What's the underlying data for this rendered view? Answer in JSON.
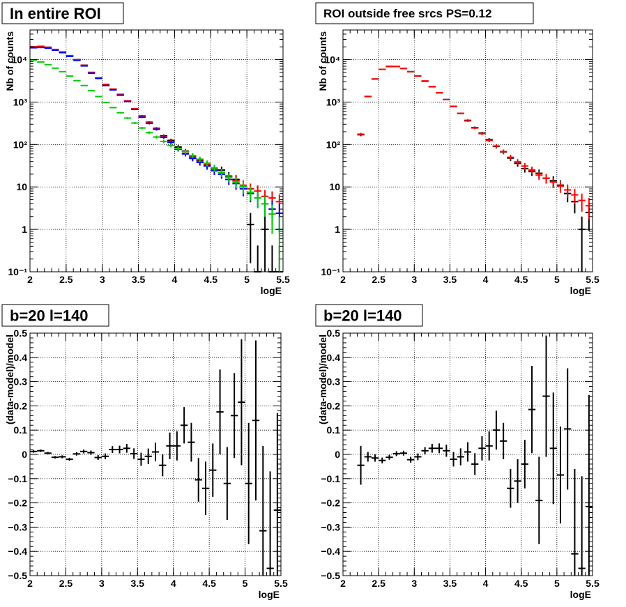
{
  "chart_data": [
    {
      "type": "scatter",
      "title": "In entire ROI",
      "xlabel": "logE",
      "ylabel": "Nb of counts",
      "xlim": [
        2,
        5.5
      ],
      "ylim": [
        0.1,
        50000
      ],
      "log_y": true,
      "grid": true,
      "x_ticks": [
        "2",
        "2.5",
        "3",
        "3.5",
        "4",
        "4.5",
        "5",
        "5.5"
      ],
      "y_ticks": [
        "10⁻¹",
        "1",
        "10",
        "10²",
        "10³",
        "10⁴"
      ],
      "bin_width": 0.1,
      "series": [
        {
          "color": "#000000",
          "x": [
            2.05,
            2.15,
            2.25,
            2.35,
            2.45,
            2.55,
            2.65,
            2.75,
            2.85,
            2.95,
            3.05,
            3.15,
            3.25,
            3.35,
            3.45,
            3.55,
            3.65,
            3.75,
            3.85,
            3.95,
            4.05,
            4.15,
            4.25,
            4.35,
            4.45,
            4.55,
            4.65,
            4.75,
            4.85,
            4.95,
            5.05,
            5.15,
            5.25,
            5.35,
            5.45
          ],
          "y": [
            20000,
            20500,
            19600,
            17300,
            15000,
            12400,
            10000,
            7400,
            5000,
            3700,
            2600,
            2020,
            1520,
            1050,
            690,
            470,
            335,
            242,
            160,
            125,
            87,
            70,
            54,
            43,
            34,
            27,
            25,
            18,
            15,
            10,
            1.3,
            0.1,
            1.0,
            0.1,
            0.1
          ],
          "y_override": [
            20000,
            20500,
            19600,
            17300,
            15000,
            12400,
            10000,
            7400,
            5000,
            3700,
            2600,
            2020,
            1520,
            1050,
            690,
            470,
            335,
            242,
            160,
            125,
            87,
            70,
            54,
            43,
            34,
            27,
            25,
            18,
            15,
            10,
            1.3,
            0.1,
            1.0,
            0.1,
            0.1
          ]
        },
        {
          "color": "#ff0000",
          "x": [
            2.05,
            2.15,
            2.25,
            2.35,
            2.45,
            2.55,
            2.65,
            2.75,
            2.85,
            2.95,
            3.05,
            3.15,
            3.25,
            3.35,
            3.45,
            3.55,
            3.65,
            3.75,
            3.85,
            3.95,
            4.05,
            4.15,
            4.25,
            4.35,
            4.45,
            4.55,
            4.65,
            4.75,
            4.85,
            4.95,
            5.05,
            5.15,
            5.25,
            5.35,
            5.45
          ],
          "y": [
            20000,
            20200,
            19400,
            17400,
            15200,
            12300,
            9950,
            7350,
            5000,
            3720,
            2560,
            2000,
            1510,
            1070,
            700,
            460,
            330,
            240,
            155,
            117,
            80,
            62,
            50,
            40,
            33,
            26,
            22,
            17,
            14,
            11,
            9,
            8,
            6,
            5.5,
            4.5
          ]
        },
        {
          "color": "#0000ff",
          "x": [
            2.05,
            2.15,
            2.25,
            2.35,
            2.45,
            2.55,
            2.65,
            2.75,
            2.85,
            2.95,
            3.05,
            3.15,
            3.25,
            3.35,
            3.45,
            3.55,
            3.65,
            3.75,
            3.85,
            3.95,
            4.05,
            4.15,
            4.25,
            4.35,
            4.45,
            4.55,
            4.65,
            4.75,
            4.85,
            4.95,
            5.05,
            5.15,
            5.25,
            5.35,
            5.45
          ],
          "y": [
            19000,
            19300,
            18600,
            16700,
            14600,
            11900,
            9600,
            7100,
            4800,
            3600,
            2450,
            1930,
            1450,
            1030,
            670,
            440,
            315,
            228,
            148,
            112,
            77,
            60,
            47,
            38,
            31,
            24,
            20,
            15,
            12,
            9,
            7,
            5.5,
            4,
            3,
            2.4
          ]
        },
        {
          "color": "#00cc00",
          "x": [
            2.05,
            2.15,
            2.25,
            2.35,
            2.45,
            2.55,
            2.65,
            2.75,
            2.85,
            2.95,
            3.05,
            3.15,
            3.25,
            3.35,
            3.45,
            3.55,
            3.65,
            3.75,
            3.85,
            3.95,
            4.05,
            4.15,
            4.25,
            4.35,
            4.45,
            4.55,
            4.65,
            4.75,
            4.85,
            4.95,
            5.05,
            5.15,
            5.25,
            5.35,
            5.45
          ],
          "y": [
            9800,
            8800,
            7600,
            6300,
            5200,
            4100,
            3200,
            2450,
            1850,
            1350,
            980,
            740,
            560,
            420,
            320,
            245,
            190,
            150,
            118,
            95,
            80,
            68,
            55,
            45,
            36,
            28,
            22,
            17,
            13,
            10,
            7.5,
            5.5,
            4,
            2.3,
            1
          ]
        }
      ]
    },
    {
      "type": "scatter",
      "title": "ROI outside free srcs PS=0.12",
      "xlabel": "logE",
      "ylabel": "Nb of counts",
      "xlim": [
        2,
        5.5
      ],
      "ylim": [
        0.1,
        50000
      ],
      "log_y": true,
      "grid": true,
      "x_ticks": [
        "2",
        "2.5",
        "3",
        "3.5",
        "4",
        "4.5",
        "5",
        "5.5"
      ],
      "y_ticks": [
        "10⁻¹",
        "1",
        "10",
        "10²",
        "10³",
        "10⁴"
      ],
      "bin_width": 0.1,
      "series": [
        {
          "color": "#000000",
          "x": [
            2.25,
            2.35,
            2.45,
            2.55,
            2.65,
            2.75,
            2.85,
            2.95,
            3.05,
            3.15,
            3.25,
            3.35,
            3.45,
            3.55,
            3.65,
            3.75,
            3.85,
            3.95,
            4.05,
            4.15,
            4.25,
            4.35,
            4.45,
            4.55,
            4.65,
            4.75,
            4.85,
            4.95,
            5.05,
            5.15,
            5.25,
            5.35,
            5.45
          ],
          "y": [
            170,
            1350,
            3500,
            5900,
            6900,
            6900,
            6200,
            5200,
            4100,
            3100,
            2300,
            1650,
            1150,
            790,
            540,
            370,
            250,
            185,
            130,
            90,
            67,
            48,
            36,
            27,
            23,
            21,
            16,
            14,
            11,
            7,
            4.5,
            1.0,
            2.5
          ]
        },
        {
          "color": "#ff0000",
          "x": [
            2.25,
            2.35,
            2.45,
            2.55,
            2.65,
            2.75,
            2.85,
            2.95,
            3.05,
            3.15,
            3.25,
            3.35,
            3.45,
            3.55,
            3.65,
            3.75,
            3.85,
            3.95,
            4.05,
            4.15,
            4.25,
            4.35,
            4.45,
            4.55,
            4.65,
            4.75,
            4.85,
            4.95,
            5.05,
            5.15,
            5.25,
            5.35,
            5.45
          ],
          "y": [
            175,
            1360,
            3500,
            5900,
            6950,
            6900,
            6200,
            5200,
            4100,
            3150,
            2320,
            1660,
            1140,
            790,
            540,
            360,
            245,
            180,
            125,
            92,
            68,
            50,
            39,
            31,
            25,
            19,
            16,
            13,
            10.5,
            8.5,
            6.5,
            4.8,
            3.6
          ]
        }
      ]
    },
    {
      "type": "scatter",
      "title": "b=20 l=140",
      "xlabel": "logE",
      "ylabel": "(data-model)/model",
      "xlim": [
        2,
        5.5
      ],
      "ylim": [
        -0.5,
        0.5
      ],
      "grid": true,
      "x_ticks": [
        "2",
        "2.5",
        "3",
        "3.5",
        "4",
        "4.5",
        "5",
        "5.5"
      ],
      "y_ticks": [
        "−0.5",
        "−0.4",
        "−0.3",
        "−0.2",
        "−0.1",
        "0",
        "0.1",
        "0.2",
        "0.3",
        "0.4",
        "0.5"
      ],
      "bin_width": 0.1,
      "series": [
        {
          "color": "#000000",
          "x": [
            2.05,
            2.15,
            2.25,
            2.35,
            2.45,
            2.55,
            2.65,
            2.75,
            2.85,
            2.95,
            3.05,
            3.15,
            3.25,
            3.35,
            3.45,
            3.55,
            3.65,
            3.75,
            3.85,
            3.95,
            4.05,
            4.15,
            4.25,
            4.35,
            4.45,
            4.55,
            4.65,
            4.75,
            4.85,
            4.95,
            5.05,
            5.15,
            5.25,
            5.35,
            5.45
          ],
          "y": [
            0.012,
            0.015,
            0.005,
            -0.012,
            -0.01,
            -0.02,
            0.002,
            0.012,
            0.007,
            -0.013,
            -0.008,
            0.02,
            0.02,
            0.025,
            0.003,
            -0.02,
            -0.008,
            0.01,
            -0.045,
            0.035,
            0.035,
            0.12,
            0.05,
            -0.105,
            -0.14,
            -0.065,
            0.175,
            -0.12,
            0.16,
            0.215,
            -0.12,
            0.14,
            -0.315,
            -0.47,
            -0.23
          ],
          "err": [
            0.005,
            0.005,
            0.005,
            0.005,
            0.006,
            0.006,
            0.007,
            0.008,
            0.009,
            0.01,
            0.012,
            0.014,
            0.016,
            0.018,
            0.022,
            0.027,
            0.032,
            0.038,
            0.045,
            0.055,
            0.06,
            0.075,
            0.08,
            0.09,
            0.11,
            0.11,
            0.175,
            0.15,
            0.175,
            0.26,
            0.25,
            0.33,
            0.35,
            0.4,
            0.4
          ]
        }
      ]
    },
    {
      "type": "scatter",
      "title": "b=20 l=140",
      "xlabel": "logE",
      "ylabel": "(data-model)/model",
      "xlim": [
        2,
        5.5
      ],
      "ylim": [
        -0.5,
        0.5
      ],
      "grid": true,
      "x_ticks": [
        "2",
        "2.5",
        "3",
        "3.5",
        "4",
        "4.5",
        "5",
        "5.5"
      ],
      "y_ticks": [
        "−0.5",
        "−0.4",
        "−0.3",
        "−0.2",
        "−0.1",
        "0",
        "0.1",
        "0.2",
        "0.3",
        "0.4",
        "0.5"
      ],
      "bin_width": 0.1,
      "series": [
        {
          "color": "#000000",
          "x": [
            2.25,
            2.35,
            2.45,
            2.55,
            2.65,
            2.75,
            2.85,
            2.95,
            3.05,
            3.15,
            3.25,
            3.35,
            3.45,
            3.55,
            3.65,
            3.75,
            3.85,
            3.95,
            4.05,
            4.15,
            4.25,
            4.35,
            4.45,
            4.55,
            4.65,
            4.75,
            4.85,
            4.95,
            5.05,
            5.15,
            5.25,
            5.35,
            5.45
          ],
          "y": [
            -0.045,
            -0.01,
            -0.015,
            -0.025,
            -0.012,
            0.003,
            0.005,
            -0.022,
            -0.01,
            0.015,
            0.025,
            0.025,
            0.015,
            -0.02,
            -0.01,
            0.01,
            -0.04,
            0.025,
            0.035,
            0.1,
            0.055,
            -0.14,
            -0.11,
            -0.04,
            0.185,
            -0.19,
            0.24,
            0.025,
            -0.085,
            0.105,
            -0.41,
            -0.47,
            -0.215
          ],
          "err": [
            0.08,
            0.02,
            0.015,
            0.012,
            0.01,
            0.01,
            0.01,
            0.012,
            0.014,
            0.015,
            0.018,
            0.02,
            0.025,
            0.03,
            0.035,
            0.04,
            0.045,
            0.05,
            0.06,
            0.08,
            0.075,
            0.08,
            0.09,
            0.1,
            0.18,
            0.18,
            0.25,
            0.23,
            0.2,
            0.25,
            0.35,
            0.38,
            0.46
          ]
        }
      ]
    }
  ]
}
